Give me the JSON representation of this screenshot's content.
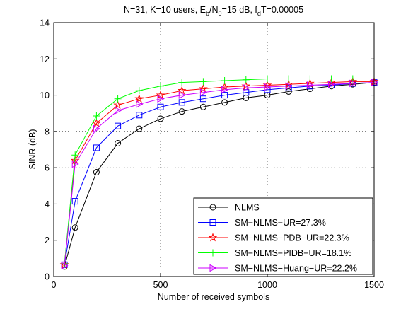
{
  "chart_data": {
    "type": "line",
    "title": {
      "prefix": "N=31, K=10 users, E",
      "sub1": "b",
      "mid1": "/N",
      "sub2": "0",
      "mid2": "=15 dB, f",
      "sub3": "d",
      "suffix": "T=0.00005"
    },
    "xlabel": "Number of received symbols",
    "ylabel": "SINR (dB)",
    "xlim": [
      0,
      1500
    ],
    "ylim": [
      0,
      14
    ],
    "xticks": [
      0,
      500,
      1000,
      1500
    ],
    "yticks": [
      0,
      2,
      4,
      6,
      8,
      10,
      12,
      14
    ],
    "grid": "dotted",
    "legend_position": "bottom-right",
    "series": [
      {
        "name": "NLMS",
        "color": "#000000",
        "marker": "circle",
        "x": [
          50,
          100,
          200,
          300,
          400,
          500,
          600,
          700,
          800,
          900,
          1000,
          1100,
          1200,
          1300,
          1400,
          1500
        ],
        "y": [
          0.55,
          2.7,
          5.75,
          7.35,
          8.15,
          8.7,
          9.1,
          9.35,
          9.6,
          9.85,
          10.0,
          10.2,
          10.35,
          10.5,
          10.6,
          10.7
        ]
      },
      {
        "name": "SM−NLMS−UR=27.3%",
        "color": "#0000ff",
        "marker": "square",
        "x": [
          50,
          100,
          200,
          300,
          400,
          500,
          600,
          700,
          800,
          900,
          1000,
          1100,
          1200,
          1300,
          1400,
          1500
        ],
        "y": [
          0.65,
          4.15,
          7.1,
          8.3,
          8.9,
          9.35,
          9.6,
          9.8,
          10.0,
          10.15,
          10.3,
          10.4,
          10.5,
          10.55,
          10.65,
          10.7
        ]
      },
      {
        "name": "SM−NLMS−PDB−UR=22.3%",
        "color": "#ff0000",
        "marker": "star",
        "x": [
          50,
          100,
          200,
          300,
          400,
          500,
          600,
          700,
          800,
          900,
          1000,
          1100,
          1200,
          1300,
          1400,
          1500
        ],
        "y": [
          0.65,
          6.4,
          8.45,
          9.45,
          9.8,
          10.0,
          10.25,
          10.35,
          10.45,
          10.5,
          10.55,
          10.6,
          10.65,
          10.7,
          10.75,
          10.75
        ]
      },
      {
        "name": "SM−NLMS−PIDB−UR=18.1%",
        "color": "#00ff00",
        "marker": "plus",
        "x": [
          50,
          100,
          200,
          300,
          400,
          500,
          600,
          700,
          800,
          900,
          1000,
          1100,
          1200,
          1300,
          1400,
          1500
        ],
        "y": [
          0.7,
          6.7,
          8.85,
          9.8,
          10.25,
          10.5,
          10.7,
          10.75,
          10.8,
          10.85,
          10.9,
          10.9,
          10.9,
          10.9,
          10.9,
          10.9
        ]
      },
      {
        "name": "SM−NLMS−Huang−UR=22.2%",
        "color": "#cc00ff",
        "marker": "triangle-right",
        "x": [
          50,
          100,
          200,
          300,
          400,
          500,
          600,
          700,
          800,
          900,
          1000,
          1100,
          1200,
          1300,
          1400,
          1500
        ],
        "y": [
          0.6,
          6.2,
          8.15,
          9.15,
          9.5,
          9.8,
          10.0,
          10.15,
          10.3,
          10.4,
          10.45,
          10.5,
          10.55,
          10.6,
          10.65,
          10.7
        ]
      }
    ]
  }
}
